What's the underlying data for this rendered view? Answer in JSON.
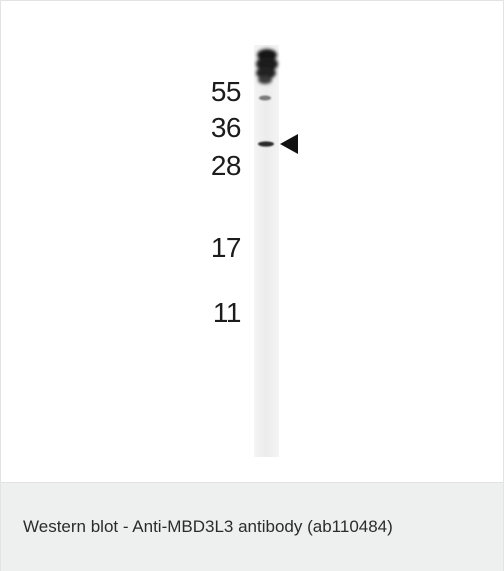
{
  "figure": {
    "markers": [
      "55",
      "36",
      "28",
      "17",
      "11"
    ],
    "caption": "Western blot - Anti-MBD3L3 antibody (ab110484)",
    "colors": {
      "band": "#1a1a1a",
      "lane": "#f1f1f1",
      "caption_bg": "#eef0f0",
      "caption_text": "#2b2b2b"
    },
    "band_marker_icon": "left-pointing-triangle-icon"
  }
}
